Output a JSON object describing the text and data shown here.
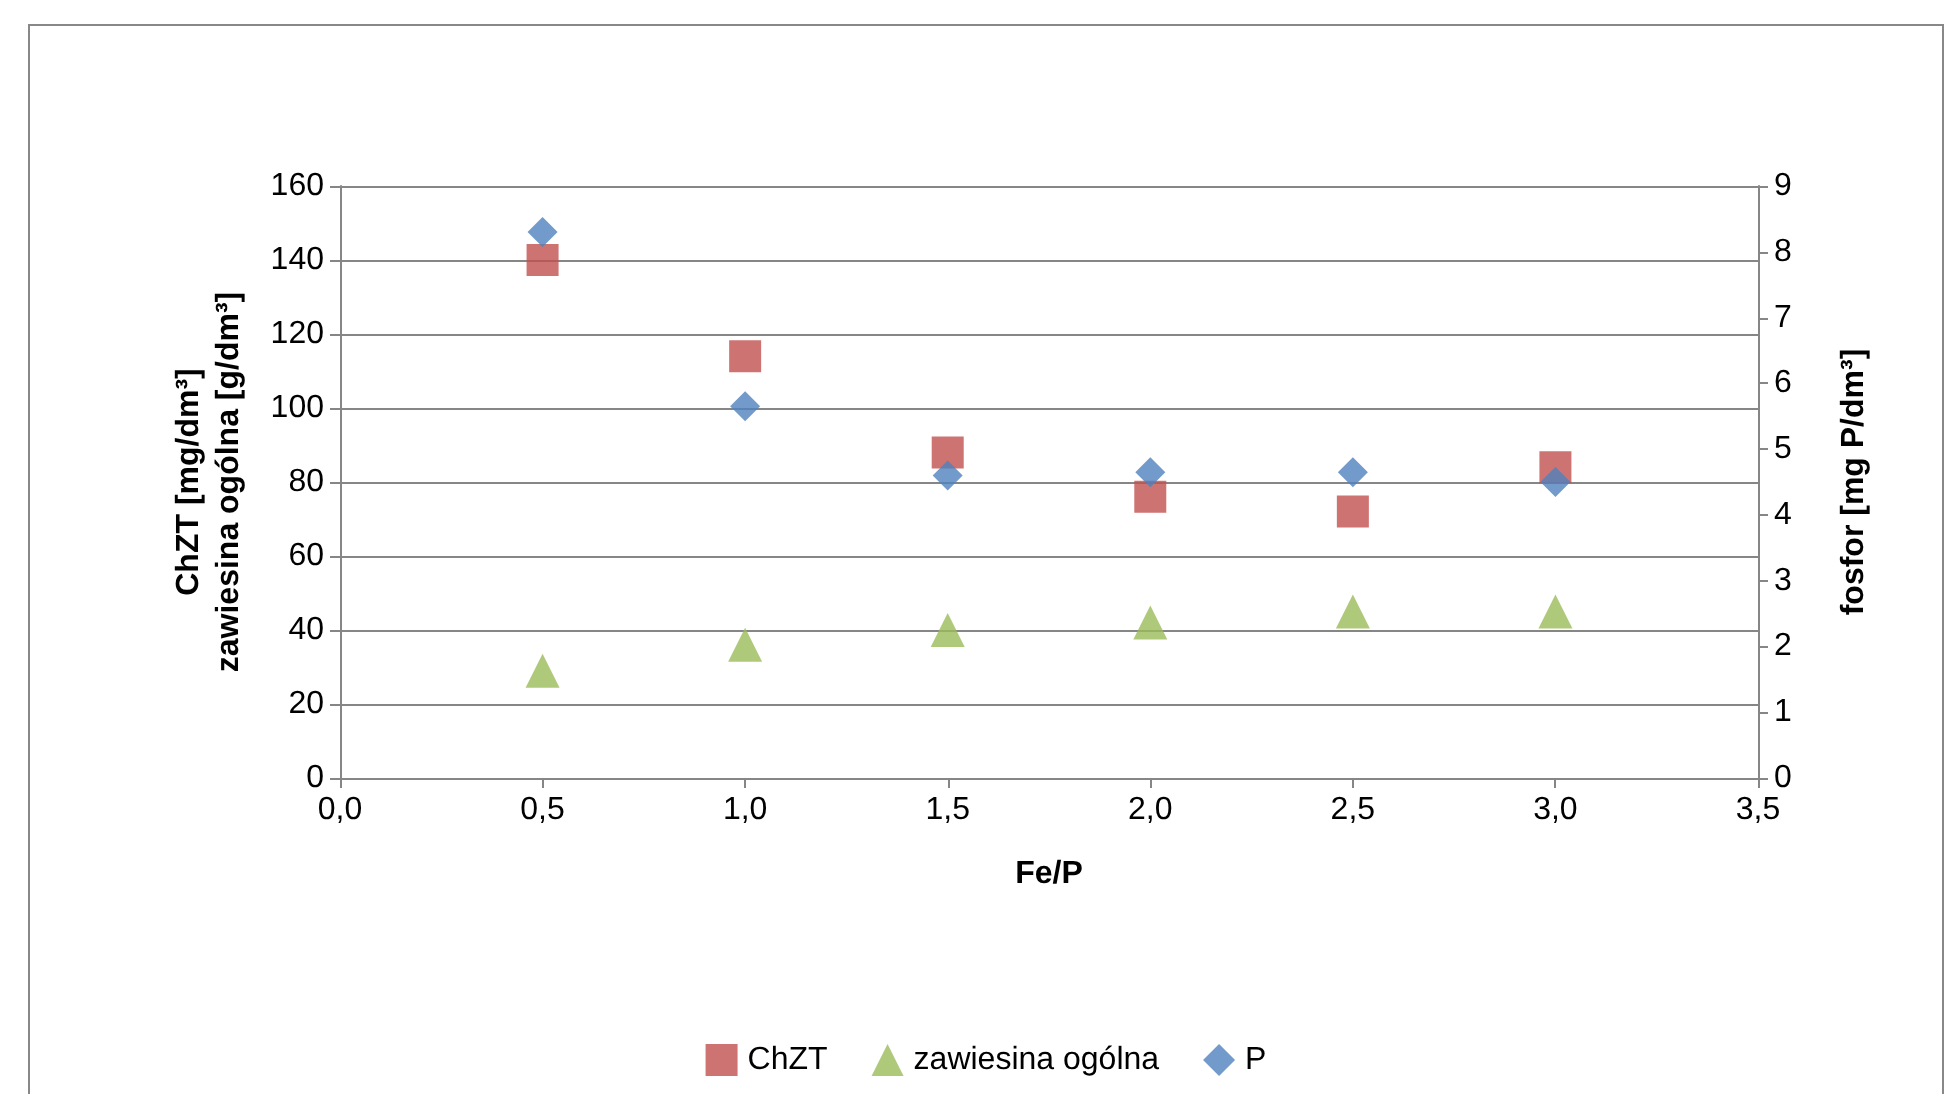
{
  "chart_data": {
    "type": "scatter",
    "xlabel": "Fe/P",
    "ylabel": "ChZT [mg/dm³]\nzawiesina ogólna [g/dm³]",
    "y2label": "fosfor [mg P/dm³]",
    "x": [
      0.5,
      1.0,
      1.5,
      2.0,
      2.5,
      3.0
    ],
    "series": [
      {
        "name": "ChZT",
        "color": "#c0504d",
        "marker": "square",
        "values": [
          140,
          114,
          88,
          76,
          72,
          84
        ]
      },
      {
        "name": "zawiesina ogólna",
        "color": "#9bbb59",
        "marker": "triangle",
        "values": [
          29,
          36,
          40,
          42,
          45,
          45
        ]
      },
      {
        "name": "P",
        "color": "#4f81bd",
        "marker": "diamond",
        "axis": "y2",
        "values": [
          8.3,
          5.65,
          4.6,
          4.65,
          4.65,
          4.5
        ]
      }
    ],
    "xlim": [
      0,
      3.5
    ],
    "xticks": [
      {
        "value": 0,
        "label": "0,0"
      },
      {
        "value": 0.5,
        "label": "0,5"
      },
      {
        "value": 1,
        "label": "1,0"
      },
      {
        "value": 1.5,
        "label": "1,5"
      },
      {
        "value": 2,
        "label": "2,0"
      },
      {
        "value": 2.5,
        "label": "2,5"
      },
      {
        "value": 3,
        "label": "3,0"
      },
      {
        "value": 3.5,
        "label": "3,5"
      }
    ],
    "ylim": [
      0,
      160
    ],
    "yticks": [
      0,
      20,
      40,
      60,
      80,
      100,
      120,
      140,
      160
    ],
    "y2lim": [
      0,
      9
    ],
    "y2ticks": [
      0,
      1,
      2,
      3,
      4,
      5,
      6,
      7,
      8,
      9
    ],
    "grid": "y",
    "legend": "bottom"
  }
}
